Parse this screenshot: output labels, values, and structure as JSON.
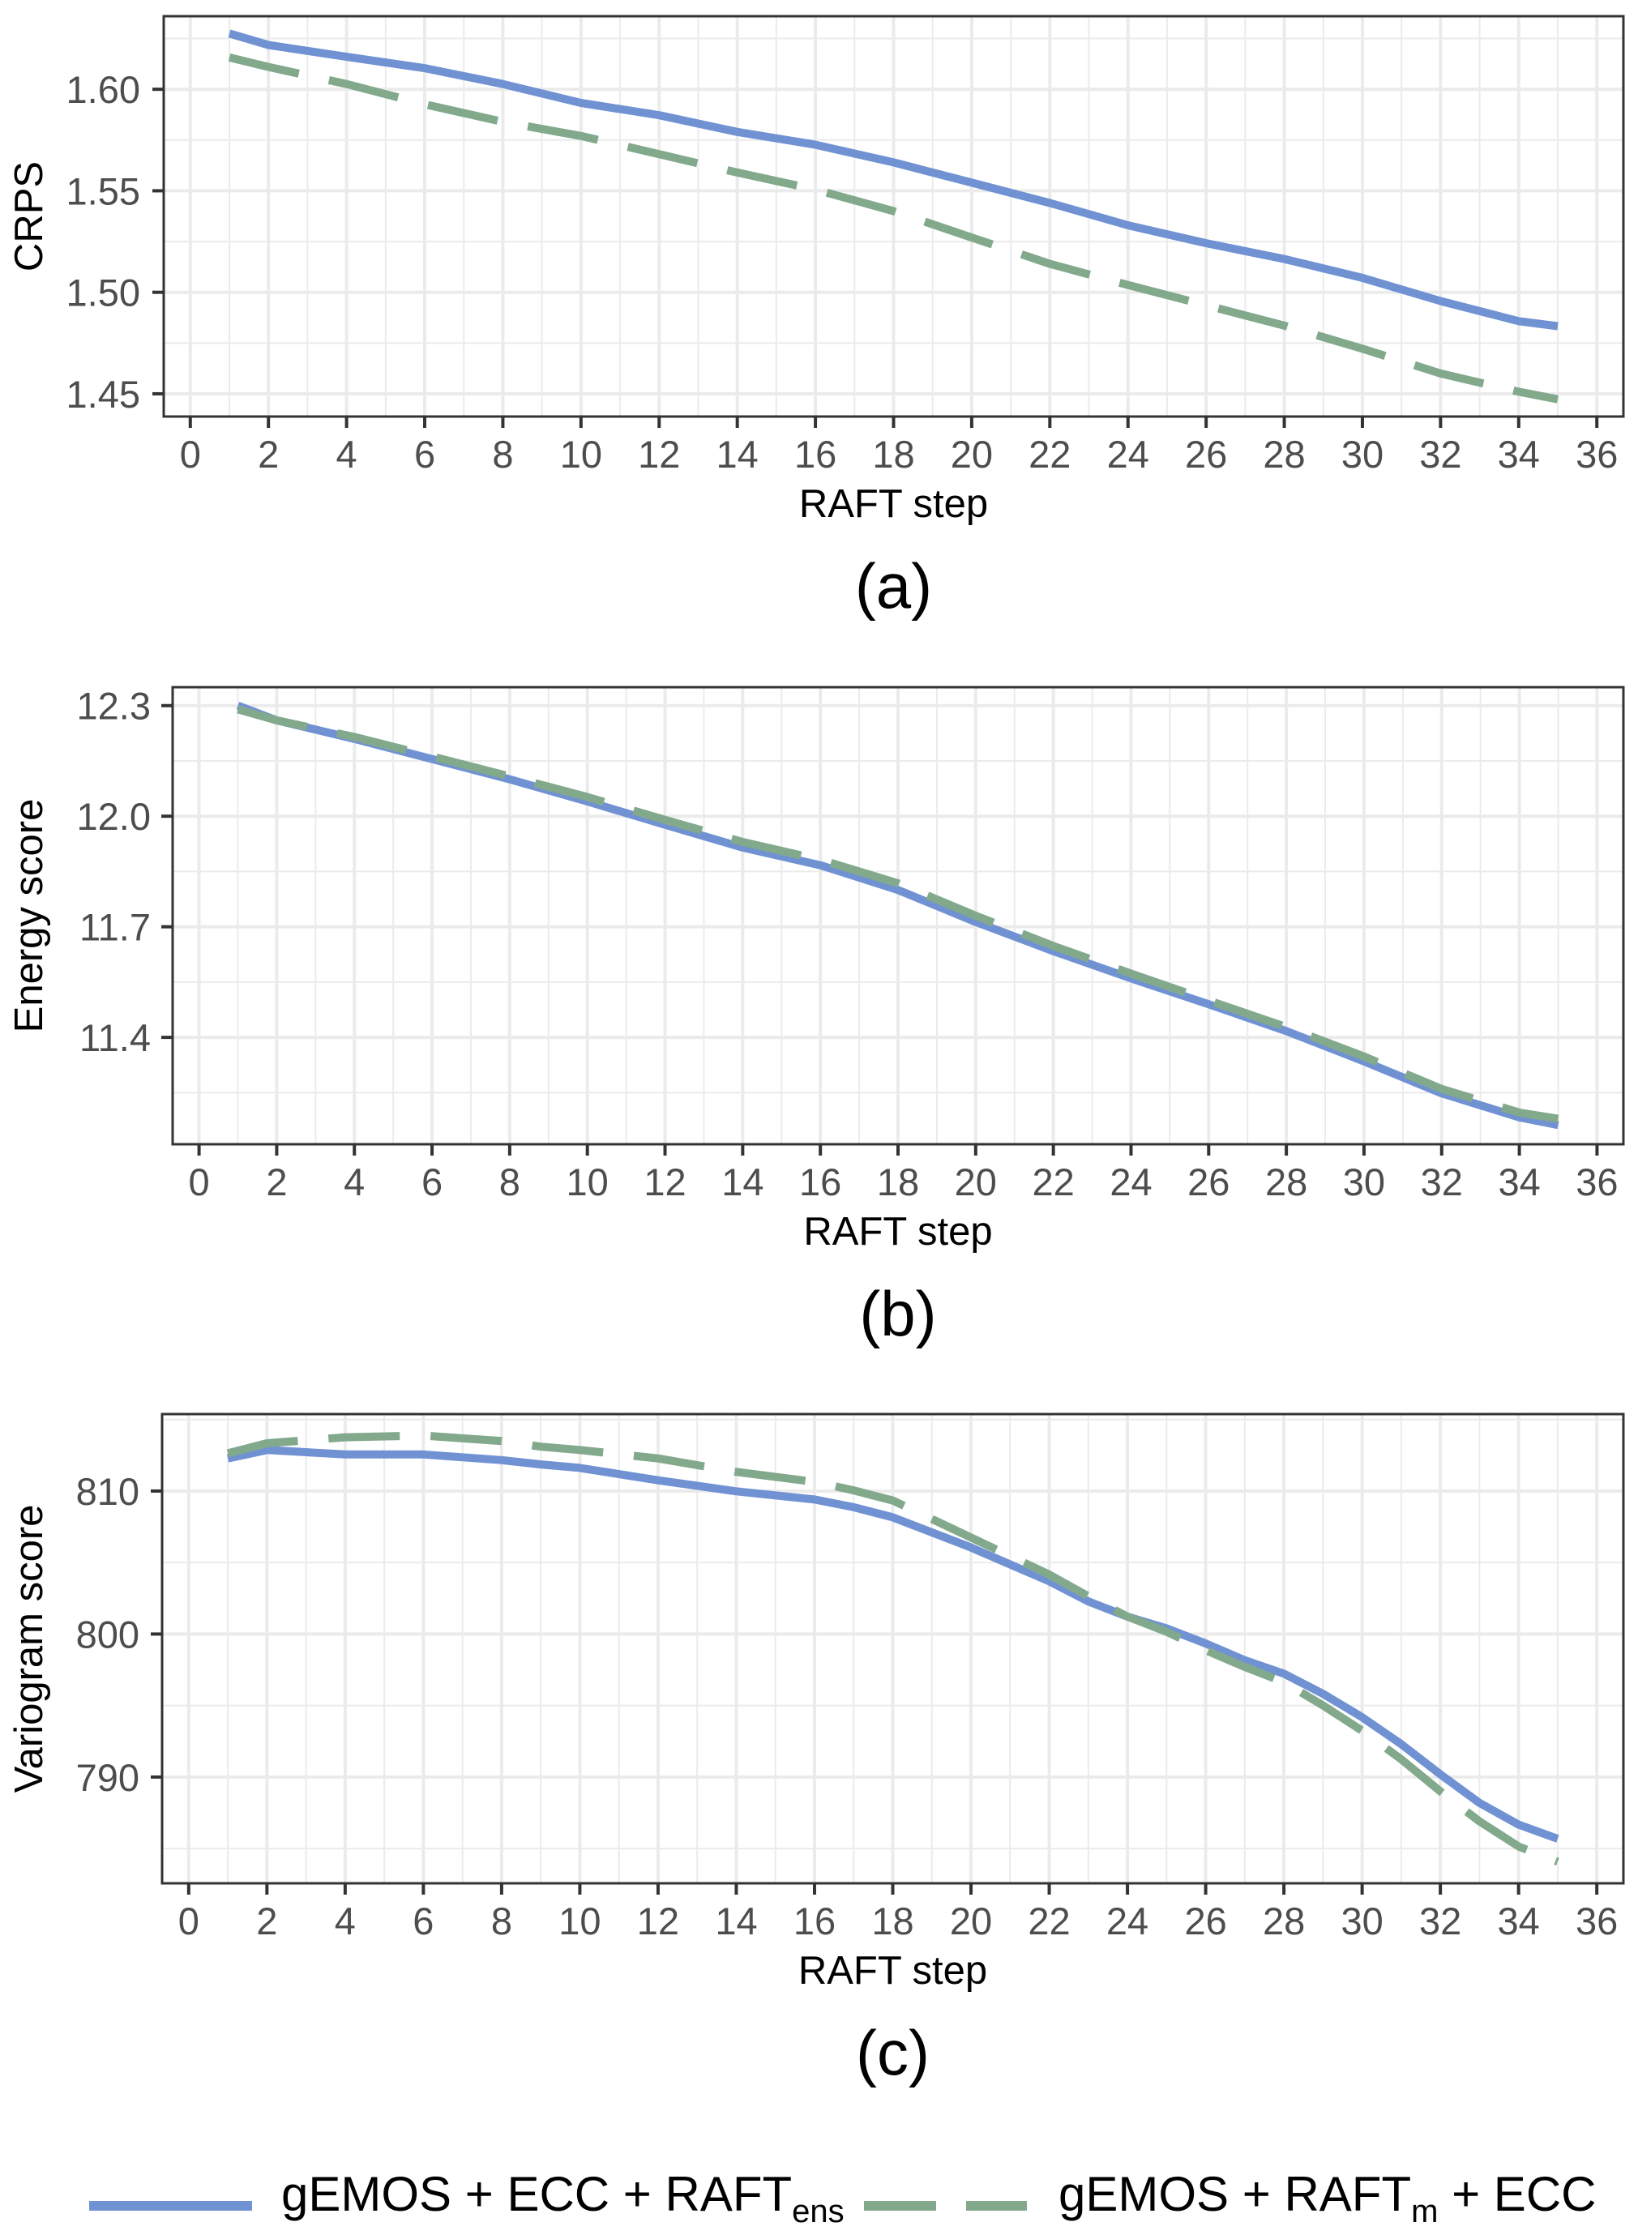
{
  "chart_data": [
    {
      "type": "line",
      "panel_label": "(a)",
      "xlabel": "RAFT step",
      "ylabel": "CRPS",
      "xlim": [
        -0.68,
        36.68
      ],
      "ylim": [
        1.4388,
        1.636
      ],
      "xticks": [
        0,
        2,
        4,
        6,
        8,
        10,
        12,
        14,
        16,
        18,
        20,
        22,
        24,
        26,
        28,
        30,
        32,
        34,
        36
      ],
      "yticks": [
        1.45,
        1.5,
        1.55,
        1.6
      ],
      "ytick_labels": [
        "1.45",
        "1.50",
        "1.55",
        "1.60"
      ],
      "yminor": [
        1.475,
        1.525,
        1.575,
        1.625
      ],
      "grid": true,
      "x": [
        1,
        2,
        4,
        6,
        8,
        10,
        12,
        14,
        16,
        18,
        20,
        22,
        24,
        26,
        28,
        30,
        32,
        34,
        35
      ],
      "series": [
        {
          "name": "gEMOS + ECC + RAFT_ens",
          "values": [
            1.6275,
            1.6218,
            1.616,
            1.6104,
            1.6026,
            1.5933,
            1.5872,
            1.579,
            1.5727,
            1.564,
            1.554,
            1.544,
            1.533,
            1.5242,
            1.5164,
            1.5071,
            1.4957,
            1.4858,
            1.4833
          ]
        },
        {
          "name": "gEMOS + RAFT_m + ECC",
          "values": [
            1.6157,
            1.611,
            1.6026,
            1.5926,
            1.584,
            1.577,
            1.568,
            1.559,
            1.5506,
            1.54,
            1.527,
            1.514,
            1.5036,
            1.4936,
            1.4836,
            1.4722,
            1.46,
            1.451,
            1.4473
          ]
        }
      ]
    },
    {
      "type": "line",
      "panel_label": "(b)",
      "xlabel": "RAFT step",
      "ylabel": "Energy score",
      "xlim": [
        -0.68,
        36.68
      ],
      "ylim": [
        11.11,
        12.35
      ],
      "xticks": [
        0,
        2,
        4,
        6,
        8,
        10,
        12,
        14,
        16,
        18,
        20,
        22,
        24,
        26,
        28,
        30,
        32,
        34,
        36
      ],
      "yticks": [
        11.4,
        11.7,
        12.0,
        12.3
      ],
      "ytick_labels": [
        "11.4",
        "11.7",
        "12.0",
        "12.3"
      ],
      "yminor": [
        11.25,
        11.55,
        11.85,
        12.15
      ],
      "grid": true,
      "x": [
        1,
        2,
        4,
        6,
        8,
        10,
        12,
        14,
        16,
        18,
        20,
        22,
        24,
        26,
        28,
        30,
        32,
        34,
        35
      ],
      "series": [
        {
          "name": "gEMOS + ECC + RAFT_ens",
          "values": [
            12.3,
            12.26,
            12.21,
            12.155,
            12.1,
            12.04,
            11.977,
            11.915,
            11.867,
            11.8,
            11.713,
            11.634,
            11.56,
            11.49,
            11.417,
            11.335,
            11.248,
            11.183,
            11.162
          ]
        },
        {
          "name": "gEMOS + RAFT_m + ECC",
          "values": [
            12.29,
            12.26,
            12.215,
            12.162,
            12.108,
            12.052,
            11.99,
            11.93,
            11.882,
            11.818,
            11.73,
            11.648,
            11.573,
            11.5,
            11.428,
            11.348,
            11.26,
            11.196,
            11.179
          ]
        }
      ]
    },
    {
      "type": "line",
      "panel_label": "(c)",
      "xlabel": "RAFT step",
      "ylabel": "Variogram score",
      "xlim": [
        -0.68,
        36.68
      ],
      "ylim": [
        782.57,
        815.38
      ],
      "xticks": [
        0,
        2,
        4,
        6,
        8,
        10,
        12,
        14,
        16,
        18,
        20,
        22,
        24,
        26,
        28,
        30,
        32,
        34,
        36
      ],
      "yticks": [
        790,
        800,
        810
      ],
      "ytick_labels": [
        "790",
        "800",
        "810"
      ],
      "yminor": [
        785,
        795,
        805,
        815
      ],
      "grid": true,
      "x": [
        1,
        2,
        4,
        6,
        8,
        9,
        10,
        12,
        14,
        16,
        17,
        18,
        20,
        22,
        23,
        24,
        25,
        26,
        27,
        28,
        29,
        30,
        31,
        32,
        33,
        34,
        35
      ],
      "series": [
        {
          "name": "gEMOS + ECC + RAFT_ens",
          "values": [
            812.28,
            812.87,
            812.56,
            812.56,
            812.16,
            811.86,
            811.62,
            810.75,
            809.98,
            809.41,
            808.87,
            808.16,
            806.05,
            803.69,
            802.28,
            801.22,
            800.4,
            799.34,
            798.17,
            797.23,
            795.82,
            794.18,
            792.3,
            790.19,
            788.19,
            786.67,
            785.68
          ]
        },
        {
          "name": "gEMOS + RAFT_m + ECC",
          "values": [
            812.64,
            813.34,
            813.76,
            813.88,
            813.5,
            813.1,
            812.87,
            812.28,
            811.34,
            810.64,
            810.05,
            809.34,
            806.75,
            804.16,
            802.64,
            801.22,
            800.16,
            798.87,
            797.7,
            796.64,
            795.0,
            793.24,
            791.24,
            789.0,
            786.9,
            785.14,
            784.08
          ]
        }
      ]
    }
  ],
  "legend": {
    "position": "bottom",
    "items": [
      {
        "base": "gEMOS + ECC + RAFT",
        "sub": "ens",
        "tail": "",
        "style": "solid",
        "color": "#7092d3"
      },
      {
        "base": "gEMOS + RAFT",
        "sub": "m",
        "tail": " + ECC",
        "style": "dashed",
        "color": "#82a98c"
      }
    ]
  },
  "colors": {
    "series_1": "#7092d3",
    "series_2": "#82a98c",
    "grid": "#ebebeb",
    "panel_border": "#333333",
    "tick_text": "#4d4d4d"
  }
}
